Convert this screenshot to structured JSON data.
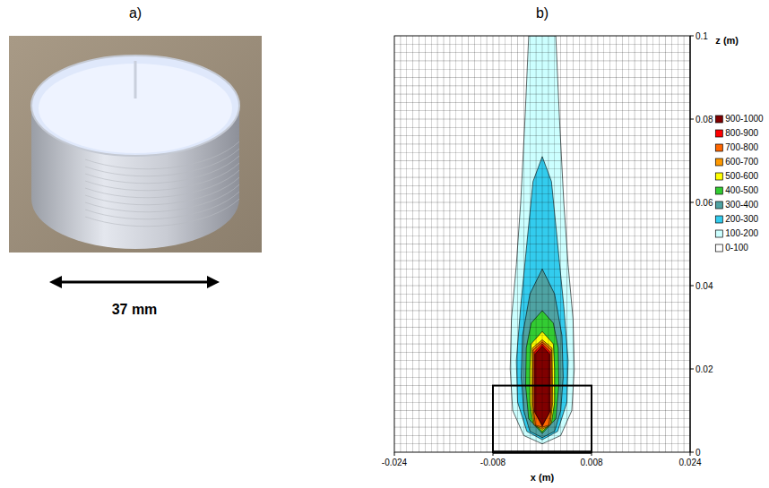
{
  "photo": {
    "panel_label": "a)",
    "caption": "37 mm"
  },
  "chart_data": {
    "type": "contour",
    "panel_label": "b)",
    "x_label": "x (m)",
    "y_label": "z (m)",
    "xlim": [
      -0.024,
      0.024
    ],
    "xticks": [
      -0.024,
      -0.008,
      0.008,
      0.024
    ],
    "ylim": [
      0,
      0.1
    ],
    "yticks": [
      0,
      0.02,
      0.04,
      0.06,
      0.08,
      0.1
    ],
    "grid": true,
    "mesh": {
      "dx": 0.001,
      "dz": 0.002
    },
    "legend": "right",
    "source_box": {
      "xlim": [
        -0.008,
        0.008
      ],
      "zlim": [
        0,
        0.016
      ]
    },
    "levels": [
      {
        "label": "900-1000",
        "color": "#800000",
        "points": [
          [
            0,
            0.0255
          ],
          [
            -0.0012,
            0.0235
          ],
          [
            -0.0012,
            0.0095
          ],
          [
            0,
            0.0065
          ],
          [
            0.0012,
            0.0095
          ],
          [
            0.0012,
            0.0235
          ]
        ]
      },
      {
        "label": "800-900",
        "color": "#ff0000",
        "points": [
          [
            0,
            0.026
          ],
          [
            -0.0013,
            0.024
          ],
          [
            -0.0013,
            0.01
          ],
          [
            0,
            0.0062
          ],
          [
            0.0013,
            0.01
          ],
          [
            0.0013,
            0.024
          ]
        ]
      },
      {
        "label": "700-800",
        "color": "#ff6600",
        "points": [
          [
            0,
            0.0265
          ],
          [
            -0.0015,
            0.0245
          ],
          [
            -0.0015,
            0.011
          ],
          [
            -0.0011,
            0.0065
          ],
          [
            0,
            0.006
          ],
          [
            0.0011,
            0.0065
          ],
          [
            0.0015,
            0.011
          ],
          [
            0.0015,
            0.0245
          ]
        ]
      },
      {
        "label": "600-700",
        "color": "#ff9900",
        "points": [
          [
            0,
            0.027
          ],
          [
            -0.0016,
            0.025
          ],
          [
            -0.0017,
            0.012
          ],
          [
            -0.0013,
            0.0065
          ],
          [
            0,
            0.0055
          ],
          [
            0.0013,
            0.0065
          ],
          [
            0.0017,
            0.012
          ],
          [
            0.0016,
            0.025
          ]
        ]
      },
      {
        "label": "500-600",
        "color": "#ffff00",
        "points": [
          [
            0,
            0.029
          ],
          [
            -0.0018,
            0.026
          ],
          [
            -0.002,
            0.02
          ],
          [
            -0.002,
            0.012
          ],
          [
            -0.0015,
            0.007
          ],
          [
            0,
            0.005
          ],
          [
            0.0015,
            0.007
          ],
          [
            0.002,
            0.012
          ],
          [
            0.002,
            0.02
          ],
          [
            0.0018,
            0.026
          ]
        ]
      },
      {
        "label": "400-500",
        "color": "#33cc33",
        "points": [
          [
            0,
            0.034
          ],
          [
            -0.0018,
            0.031
          ],
          [
            -0.0026,
            0.025
          ],
          [
            -0.0027,
            0.016
          ],
          [
            -0.0022,
            0.008
          ],
          [
            0,
            0.0045
          ],
          [
            0.0022,
            0.008
          ],
          [
            0.0027,
            0.016
          ],
          [
            0.0026,
            0.025
          ],
          [
            0.0018,
            0.031
          ]
        ]
      },
      {
        "label": "300-400",
        "color": "#4fa3a3",
        "points": [
          [
            0,
            0.044
          ],
          [
            -0.002,
            0.038
          ],
          [
            -0.0032,
            0.028
          ],
          [
            -0.0034,
            0.018
          ],
          [
            -0.003,
            0.01
          ],
          [
            -0.002,
            0.005
          ],
          [
            0,
            0.0035
          ],
          [
            0.002,
            0.005
          ],
          [
            0.003,
            0.01
          ],
          [
            0.0034,
            0.018
          ],
          [
            0.0032,
            0.028
          ],
          [
            0.002,
            0.038
          ]
        ]
      },
      {
        "label": "200-300",
        "color": "#33ccee",
        "points": [
          [
            0,
            0.071
          ],
          [
            -0.0015,
            0.065
          ],
          [
            -0.0025,
            0.05
          ],
          [
            -0.0035,
            0.035
          ],
          [
            -0.0042,
            0.022
          ],
          [
            -0.004,
            0.012
          ],
          [
            -0.0025,
            0.005
          ],
          [
            0,
            0.003
          ],
          [
            0.0025,
            0.005
          ],
          [
            0.004,
            0.012
          ],
          [
            0.0042,
            0.022
          ],
          [
            0.0035,
            0.035
          ],
          [
            0.0025,
            0.05
          ],
          [
            0.0015,
            0.065
          ]
        ]
      },
      {
        "label": "100-200",
        "color": "#ccffff",
        "points": [
          [
            -0.0022,
            0.1
          ],
          [
            -0.0028,
            0.08
          ],
          [
            -0.0035,
            0.06
          ],
          [
            -0.0042,
            0.045
          ],
          [
            -0.005,
            0.032
          ],
          [
            -0.0052,
            0.02
          ],
          [
            -0.0048,
            0.01
          ],
          [
            -0.003,
            0.004
          ],
          [
            0,
            0.002
          ],
          [
            0.003,
            0.004
          ],
          [
            0.0048,
            0.01
          ],
          [
            0.0052,
            0.02
          ],
          [
            0.005,
            0.032
          ],
          [
            0.0042,
            0.045
          ],
          [
            0.0035,
            0.06
          ],
          [
            0.0028,
            0.08
          ],
          [
            0.0022,
            0.1
          ]
        ]
      },
      {
        "label": "0-100",
        "color": "#ffffff"
      }
    ]
  }
}
